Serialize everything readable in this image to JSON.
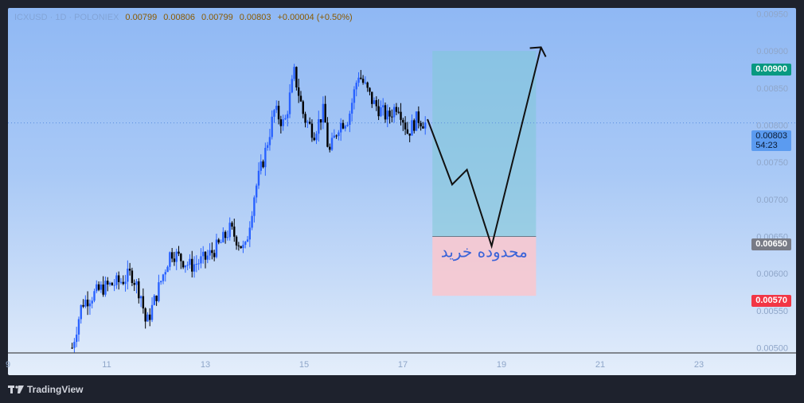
{
  "header": {
    "symbol": "ICXUSD · 1D · POLONIEX",
    "open": "0.00799",
    "high": "0.00806",
    "low": "0.00799",
    "close": "0.00803",
    "change": "+0.00004 (+0.50%)"
  },
  "annotation_text": "محدوده خرید",
  "footer": {
    "brand": "TradingView"
  },
  "price_tags": {
    "target": "0.00900",
    "current_price": "0.00803",
    "current_countdown": "54:23",
    "entry": "0.00650",
    "stop": "0.00570"
  },
  "colors": {
    "background": "#1e222d",
    "target_tag": "#089981",
    "entry_tag": "#787b86",
    "stop_tag": "#f23645",
    "profit_zone": "#7fc9d6",
    "loss_zone": "#f7c8cf",
    "candle_up": "#2962ff",
    "candle_down": "#000000"
  },
  "chart_data": {
    "type": "candlestick",
    "x_axis": {
      "ticks": [
        "9",
        "11",
        "13",
        "15",
        "17",
        "19",
        "21",
        "23"
      ],
      "range": [
        9,
        24
      ]
    },
    "y_axis": {
      "ticks": [
        "0.00500",
        "0.00550",
        "0.00600",
        "0.00650",
        "0.00700",
        "0.00750",
        "0.00800",
        "0.00850",
        "0.00900",
        "0.00950"
      ],
      "range": [
        0.00493,
        0.00958
      ]
    },
    "price_series": [
      [
        10.3,
        0.005
      ],
      [
        10.5,
        0.0056
      ],
      [
        10.9,
        0.0058
      ],
      [
        11.3,
        0.0059
      ],
      [
        11.5,
        0.006
      ],
      [
        11.7,
        0.0057
      ],
      [
        11.8,
        0.0053
      ],
      [
        12.0,
        0.0057
      ],
      [
        12.3,
        0.0063
      ],
      [
        12.7,
        0.0061
      ],
      [
        13.0,
        0.0062
      ],
      [
        13.3,
        0.0064
      ],
      [
        13.5,
        0.0066
      ],
      [
        13.8,
        0.0063
      ],
      [
        14.0,
        0.0071
      ],
      [
        14.2,
        0.0076
      ],
      [
        14.4,
        0.0082
      ],
      [
        14.6,
        0.008
      ],
      [
        14.8,
        0.0087
      ],
      [
        15.0,
        0.0081
      ],
      [
        15.2,
        0.0079
      ],
      [
        15.4,
        0.0082
      ],
      [
        15.5,
        0.0076
      ],
      [
        15.7,
        0.008
      ],
      [
        15.9,
        0.0081
      ],
      [
        16.1,
        0.0087
      ],
      [
        16.4,
        0.0083
      ],
      [
        16.7,
        0.0081
      ],
      [
        16.9,
        0.0083
      ],
      [
        17.1,
        0.0079
      ],
      [
        17.3,
        0.0081
      ],
      [
        17.5,
        0.008
      ]
    ],
    "projection": [
      [
        17.5,
        0.00808
      ],
      [
        18.0,
        0.0072
      ],
      [
        18.3,
        0.0074
      ],
      [
        18.8,
        0.00637
      ],
      [
        19.8,
        0.00905
      ]
    ],
    "levels": {
      "target": 0.009,
      "current": 0.00803,
      "entry": 0.0065,
      "stop": 0.0057
    },
    "position_box": {
      "x_start": 17.6,
      "x_end": 19.7
    }
  }
}
